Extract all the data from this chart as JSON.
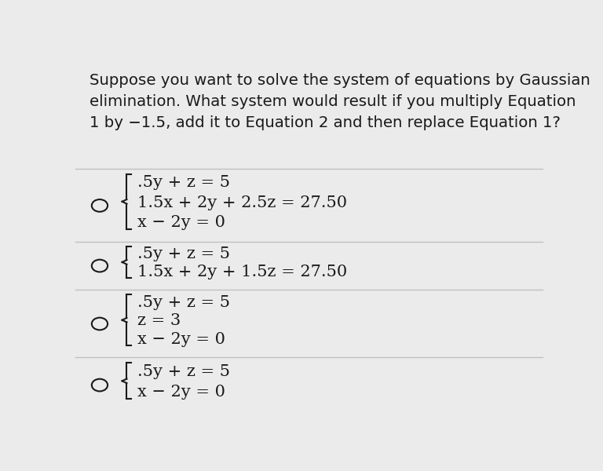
{
  "background_color": "#ebebeb",
  "question_text": "Suppose you want to solve the system of equations by Gaussian\nelimination. What system would result if you multiply Equation\n1 by −1.5, add it to Equation 2 and then replace Equation 1?",
  "question_fontsize": 14.2,
  "question_color": "#1a1a1a",
  "options": [
    {
      "lines": [
        ".5y + z = 5",
        "1.5x + 2y + 2.5z = 27.50",
        "x − 2y = 0"
      ]
    },
    {
      "lines": [
        ".5y + z = 5",
        "1.5x + 2y + 1.5z = 27.50"
      ]
    },
    {
      "lines": [
        ".5y + z = 5",
        "z = 3",
        "x − 2y = 0"
      ]
    },
    {
      "lines": [
        ".5y + z = 5",
        "x − 2y = 0"
      ]
    }
  ],
  "circle_color": "#1a1a1a",
  "text_color": "#1a1a1a",
  "math_fontsize": 15,
  "divider_color": "#c0c0c0"
}
